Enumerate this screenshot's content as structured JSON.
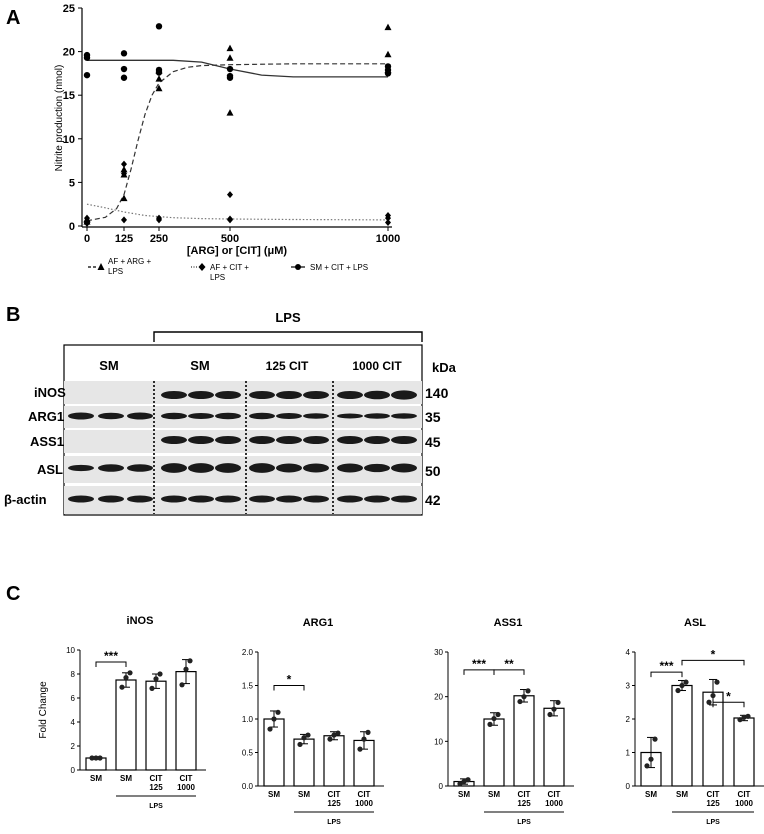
{
  "panel_labels": {
    "a": "A",
    "b": "B",
    "c": "C"
  },
  "chart_data": [
    {
      "type": "scatter",
      "panel": "A",
      "xlabel": "[ARG] or [CIT] (μM)",
      "ylabel": "Nitrite production (nmol)",
      "x_ticks": [
        0,
        125,
        250,
        500,
        1000
      ],
      "y_ticks": [
        0,
        5,
        10,
        15,
        20,
        25
      ],
      "xlim": [
        0,
        1000
      ],
      "ylim": [
        0,
        25
      ],
      "legend": [
        {
          "line1": "AF + ARG +",
          "line2": "LPS"
        },
        {
          "line1": "AF + CIT +",
          "line2": "LPS"
        },
        {
          "line1": "SM + CIT + LPS",
          "line2": ""
        }
      ],
      "series": [
        {
          "name": "AF + ARG + LPS",
          "marker": "triangle",
          "line": "dashed",
          "points": [
            [
              0,
              0.5
            ],
            [
              0,
              0.7
            ],
            [
              0,
              0.8
            ],
            [
              125,
              3.2
            ],
            [
              125,
              5.9
            ],
            [
              125,
              6.5
            ],
            [
              250,
              15.8
            ],
            [
              250,
              16.9
            ],
            [
              250,
              17.8
            ],
            [
              500,
              13.0
            ],
            [
              500,
              19.3
            ],
            [
              500,
              20.4
            ],
            [
              1000,
              17.9
            ],
            [
              1000,
              19.7
            ],
            [
              1000,
              22.8
            ]
          ],
          "fit": [
            [
              0,
              0.6
            ],
            [
              62,
              1.0
            ],
            [
              100,
              2.0
            ],
            [
              125,
              3.6
            ],
            [
              150,
              6.5
            ],
            [
              175,
              9.8
            ],
            [
              200,
              12.8
            ],
            [
              225,
              15.0
            ],
            [
              250,
              16.4
            ],
            [
              300,
              17.7
            ],
            [
              350,
              18.2
            ],
            [
              400,
              18.4
            ],
            [
              500,
              18.5
            ],
            [
              700,
              18.6
            ],
            [
              1000,
              18.6
            ]
          ]
        },
        {
          "name": "AF + CIT + LPS",
          "marker": "diamond",
          "line": "dotted",
          "points": [
            [
              0,
              0.3
            ],
            [
              0,
              0.5
            ],
            [
              0,
              0.9
            ],
            [
              125,
              0.7
            ],
            [
              125,
              6.0
            ],
            [
              125,
              7.1
            ],
            [
              250,
              0.7
            ],
            [
              250,
              0.9
            ],
            [
              500,
              0.7
            ],
            [
              500,
              0.8
            ],
            [
              500,
              3.6
            ],
            [
              1000,
              0.4
            ],
            [
              1000,
              0.9
            ],
            [
              1000,
              1.2
            ]
          ],
          "fit": [
            [
              0,
              2.5
            ],
            [
              60,
              2.1
            ],
            [
              125,
              1.6
            ],
            [
              200,
              1.2
            ],
            [
              300,
              0.95
            ],
            [
              400,
              0.85
            ],
            [
              500,
              0.8
            ],
            [
              700,
              0.75
            ],
            [
              1000,
              0.7
            ]
          ]
        },
        {
          "name": "SM + CIT + LPS",
          "marker": "circle",
          "line": "solid",
          "points": [
            [
              0,
              17.3
            ],
            [
              0,
              19.3
            ],
            [
              0,
              19.6
            ],
            [
              125,
              17.0
            ],
            [
              125,
              18.0
            ],
            [
              125,
              19.8
            ],
            [
              250,
              17.6
            ],
            [
              250,
              17.9
            ],
            [
              250,
              22.9
            ],
            [
              500,
              17.0
            ],
            [
              500,
              17.2
            ],
            [
              500,
              18.0
            ],
            [
              1000,
              17.5
            ],
            [
              1000,
              17.9
            ],
            [
              1000,
              18.3
            ]
          ],
          "fit": [
            [
              0,
              19.0
            ],
            [
              300,
              19.0
            ],
            [
              400,
              18.8
            ],
            [
              500,
              18.0
            ],
            [
              600,
              17.3
            ],
            [
              700,
              17.1
            ],
            [
              1000,
              17.1
            ]
          ]
        }
      ]
    },
    {
      "type": "bar",
      "panel": "C",
      "title": "iNOS",
      "ylabel": "Fold Change",
      "ylim": [
        0,
        10
      ],
      "yticks": [
        0,
        2,
        4,
        6,
        8,
        10
      ],
      "categories": [
        {
          "l1": "SM",
          "l2": ""
        },
        {
          "l1": "SM",
          "l2": ""
        },
        {
          "l1": "CIT",
          "l2": "125"
        },
        {
          "l1": "CIT",
          "l2": "1000"
        }
      ],
      "values": [
        1.0,
        7.5,
        7.4,
        8.2
      ],
      "errors": [
        0.1,
        0.6,
        0.6,
        1.0
      ],
      "points": [
        [
          1.0,
          1.0,
          1.0
        ],
        [
          6.9,
          7.7,
          8.1
        ],
        [
          6.8,
          7.6,
          8.0
        ],
        [
          7.1,
          8.4,
          9.1
        ]
      ],
      "group_label": "LPS",
      "significance": [
        {
          "from": 0,
          "to": 1,
          "label": "***",
          "y": 9.0
        }
      ]
    },
    {
      "type": "bar",
      "panel": "C",
      "title": "ARG1",
      "ylabel": "",
      "ylim": [
        0,
        2.0
      ],
      "yticks": [
        0.0,
        0.5,
        1.0,
        1.5,
        2.0
      ],
      "categories": [
        {
          "l1": "SM",
          "l2": ""
        },
        {
          "l1": "SM",
          "l2": ""
        },
        {
          "l1": "CIT",
          "l2": "125"
        },
        {
          "l1": "CIT",
          "l2": "1000"
        }
      ],
      "values": [
        1.0,
        0.7,
        0.75,
        0.68
      ],
      "errors": [
        0.12,
        0.07,
        0.06,
        0.13
      ],
      "points": [
        [
          0.85,
          1.0,
          1.1
        ],
        [
          0.62,
          0.72,
          0.76
        ],
        [
          0.7,
          0.76,
          0.79
        ],
        [
          0.55,
          0.7,
          0.8
        ]
      ],
      "group_label": "LPS",
      "significance": [
        {
          "from": 0,
          "to": 1,
          "label": "*",
          "y": 1.5
        }
      ]
    },
    {
      "type": "bar",
      "panel": "C",
      "title": "ASS1",
      "ylabel": "",
      "ylim": [
        0,
        30
      ],
      "yticks": [
        0,
        10,
        20,
        30
      ],
      "categories": [
        {
          "l1": "SM",
          "l2": ""
        },
        {
          "l1": "SM",
          "l2": ""
        },
        {
          "l1": "CIT",
          "l2": "125"
        },
        {
          "l1": "CIT",
          "l2": "1000"
        }
      ],
      "values": [
        1.0,
        15.0,
        20.2,
        17.4
      ],
      "errors": [
        0.6,
        1.4,
        1.4,
        1.7
      ],
      "points": [
        [
          0.5,
          1.0,
          1.4
        ],
        [
          13.8,
          15.1,
          16.0
        ],
        [
          18.9,
          20.0,
          21.3
        ],
        [
          16.0,
          17.2,
          18.7
        ]
      ],
      "group_label": "LPS",
      "significance": [
        {
          "from": 0,
          "to": 1,
          "label": "***",
          "y": 26.0
        },
        {
          "from": 1,
          "to": 2,
          "label": "**",
          "y": 26.0
        }
      ]
    },
    {
      "type": "bar",
      "panel": "C",
      "title": "ASL",
      "ylabel": "",
      "ylim": [
        0,
        4
      ],
      "yticks": [
        0,
        1,
        2,
        3,
        4
      ],
      "categories": [
        {
          "l1": "SM",
          "l2": ""
        },
        {
          "l1": "SM",
          "l2": ""
        },
        {
          "l1": "CIT",
          "l2": "125"
        },
        {
          "l1": "CIT",
          "l2": "1000"
        }
      ],
      "values": [
        1.0,
        3.0,
        2.8,
        2.03
      ],
      "errors": [
        0.45,
        0.15,
        0.38,
        0.08
      ],
      "points": [
        [
          0.6,
          0.8,
          1.4
        ],
        [
          2.85,
          3.0,
          3.1
        ],
        [
          2.5,
          2.7,
          3.1
        ],
        [
          1.98,
          2.05,
          2.08
        ]
      ],
      "group_label": "LPS",
      "significance": [
        {
          "from": 0,
          "to": 1,
          "label": "***",
          "y": 3.4
        },
        {
          "from": 2,
          "to": 3,
          "label": "*",
          "y": 2.5
        },
        {
          "from": 1,
          "to": 3,
          "label": "*",
          "y": 3.75
        }
      ]
    }
  ],
  "western_blot": {
    "lps_label": "LPS",
    "column_headers": [
      "SM",
      "SM",
      "125 CIT",
      "1000 CIT"
    ],
    "kda_label": "kDa",
    "rows": [
      {
        "protein": "iNOS",
        "kda": "140"
      },
      {
        "protein": "ARG1",
        "kda": "35"
      },
      {
        "protein": "ASS1",
        "kda": "45"
      },
      {
        "protein": "ASL",
        "kda": "50"
      },
      {
        "protein": "β-actin",
        "kda": "42"
      }
    ]
  },
  "colors": {
    "ink": "#000000",
    "blot_background": "#e6e6e6",
    "band": "#1a1a1a"
  }
}
